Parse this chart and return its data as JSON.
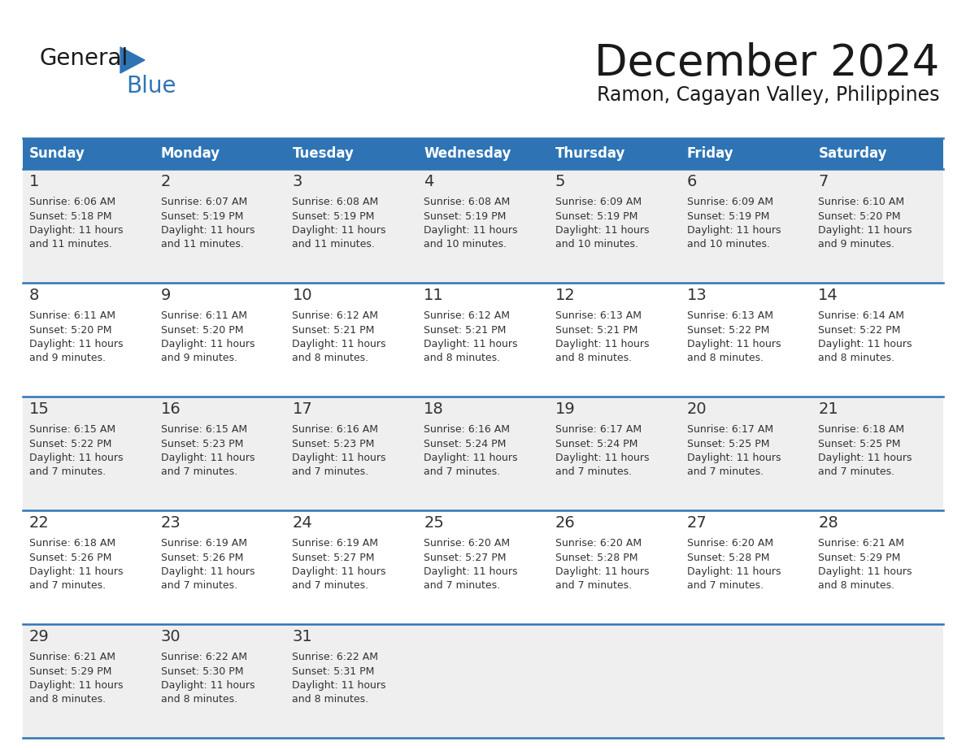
{
  "title": "December 2024",
  "subtitle": "Ramon, Cagayan Valley, Philippines",
  "header_bg": "#2E74B5",
  "header_text": "#FFFFFF",
  "cell_bg_even": "#EFEFEF",
  "cell_bg_odd": "#FFFFFF",
  "row_line_color": "#2E74B5",
  "text_color": "#333333",
  "day_headers": [
    "Sunday",
    "Monday",
    "Tuesday",
    "Wednesday",
    "Thursday",
    "Friday",
    "Saturday"
  ],
  "weeks": [
    [
      {
        "day": "1",
        "sunrise": "6:06 AM",
        "sunset": "5:18 PM",
        "daylight_min": "11 minutes."
      },
      {
        "day": "2",
        "sunrise": "6:07 AM",
        "sunset": "5:19 PM",
        "daylight_min": "11 minutes."
      },
      {
        "day": "3",
        "sunrise": "6:08 AM",
        "sunset": "5:19 PM",
        "daylight_min": "11 minutes."
      },
      {
        "day": "4",
        "sunrise": "6:08 AM",
        "sunset": "5:19 PM",
        "daylight_min": "10 minutes."
      },
      {
        "day": "5",
        "sunrise": "6:09 AM",
        "sunset": "5:19 PM",
        "daylight_min": "10 minutes."
      },
      {
        "day": "6",
        "sunrise": "6:09 AM",
        "sunset": "5:19 PM",
        "daylight_min": "10 minutes."
      },
      {
        "day": "7",
        "sunrise": "6:10 AM",
        "sunset": "5:20 PM",
        "daylight_min": "9 minutes."
      }
    ],
    [
      {
        "day": "8",
        "sunrise": "6:11 AM",
        "sunset": "5:20 PM",
        "daylight_min": "9 minutes."
      },
      {
        "day": "9",
        "sunrise": "6:11 AM",
        "sunset": "5:20 PM",
        "daylight_min": "9 minutes."
      },
      {
        "day": "10",
        "sunrise": "6:12 AM",
        "sunset": "5:21 PM",
        "daylight_min": "8 minutes."
      },
      {
        "day": "11",
        "sunrise": "6:12 AM",
        "sunset": "5:21 PM",
        "daylight_min": "8 minutes."
      },
      {
        "day": "12",
        "sunrise": "6:13 AM",
        "sunset": "5:21 PM",
        "daylight_min": "8 minutes."
      },
      {
        "day": "13",
        "sunrise": "6:13 AM",
        "sunset": "5:22 PM",
        "daylight_min": "8 minutes."
      },
      {
        "day": "14",
        "sunrise": "6:14 AM",
        "sunset": "5:22 PM",
        "daylight_min": "8 minutes."
      }
    ],
    [
      {
        "day": "15",
        "sunrise": "6:15 AM",
        "sunset": "5:22 PM",
        "daylight_min": "7 minutes."
      },
      {
        "day": "16",
        "sunrise": "6:15 AM",
        "sunset": "5:23 PM",
        "daylight_min": "7 minutes."
      },
      {
        "day": "17",
        "sunrise": "6:16 AM",
        "sunset": "5:23 PM",
        "daylight_min": "7 minutes."
      },
      {
        "day": "18",
        "sunrise": "6:16 AM",
        "sunset": "5:24 PM",
        "daylight_min": "7 minutes."
      },
      {
        "day": "19",
        "sunrise": "6:17 AM",
        "sunset": "5:24 PM",
        "daylight_min": "7 minutes."
      },
      {
        "day": "20",
        "sunrise": "6:17 AM",
        "sunset": "5:25 PM",
        "daylight_min": "7 minutes."
      },
      {
        "day": "21",
        "sunrise": "6:18 AM",
        "sunset": "5:25 PM",
        "daylight_min": "7 minutes."
      }
    ],
    [
      {
        "day": "22",
        "sunrise": "6:18 AM",
        "sunset": "5:26 PM",
        "daylight_min": "7 minutes."
      },
      {
        "day": "23",
        "sunrise": "6:19 AM",
        "sunset": "5:26 PM",
        "daylight_min": "7 minutes."
      },
      {
        "day": "24",
        "sunrise": "6:19 AM",
        "sunset": "5:27 PM",
        "daylight_min": "7 minutes."
      },
      {
        "day": "25",
        "sunrise": "6:20 AM",
        "sunset": "5:27 PM",
        "daylight_min": "7 minutes."
      },
      {
        "day": "26",
        "sunrise": "6:20 AM",
        "sunset": "5:28 PM",
        "daylight_min": "7 minutes."
      },
      {
        "day": "27",
        "sunrise": "6:20 AM",
        "sunset": "5:28 PM",
        "daylight_min": "7 minutes."
      },
      {
        "day": "28",
        "sunrise": "6:21 AM",
        "sunset": "5:29 PM",
        "daylight_min": "8 minutes."
      }
    ],
    [
      {
        "day": "29",
        "sunrise": "6:21 AM",
        "sunset": "5:29 PM",
        "daylight_min": "8 minutes."
      },
      {
        "day": "30",
        "sunrise": "6:22 AM",
        "sunset": "5:30 PM",
        "daylight_min": "8 minutes."
      },
      {
        "day": "31",
        "sunrise": "6:22 AM",
        "sunset": "5:31 PM",
        "daylight_min": "8 minutes."
      },
      null,
      null,
      null,
      null
    ]
  ]
}
